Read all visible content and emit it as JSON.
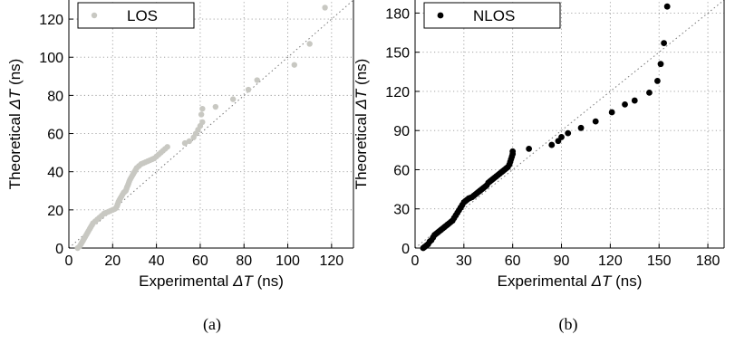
{
  "chart_data": [
    {
      "type": "scatter",
      "caption": "(a)",
      "xlabel": {
        "pre": "Experimental ",
        "sym": "ΔT",
        "post": " (ns)"
      },
      "ylabel": {
        "pre": "Theoretical ",
        "sym": "ΔT",
        "post": " (ns)"
      },
      "xlim": [
        0,
        130
      ],
      "ylim": [
        0,
        130
      ],
      "xticks": [
        0,
        20,
        40,
        60,
        80,
        100,
        120
      ],
      "yticks": [
        0,
        20,
        40,
        60,
        80,
        100,
        120
      ],
      "grid": true,
      "reference_line": "y = x (dotted)",
      "legend_position": "top-left",
      "series": [
        {
          "name": "LOS",
          "color": "#c8c8c2",
          "points": [
            [
              4,
              0
            ],
            [
              5,
              1
            ],
            [
              5.5,
              2
            ],
            [
              6,
              3
            ],
            [
              6.5,
              4
            ],
            [
              7,
              5
            ],
            [
              7.5,
              6
            ],
            [
              8,
              7
            ],
            [
              8.5,
              8
            ],
            [
              9,
              9
            ],
            [
              9.5,
              10
            ],
            [
              10,
              11
            ],
            [
              10.5,
              12
            ],
            [
              11,
              13
            ],
            [
              12,
              14
            ],
            [
              13,
              15
            ],
            [
              14,
              16
            ],
            [
              15,
              17
            ],
            [
              16,
              18
            ],
            [
              17,
              18.5
            ],
            [
              18,
              19
            ],
            [
              19,
              19.5
            ],
            [
              20,
              20
            ],
            [
              21,
              20.5
            ],
            [
              21.5,
              21
            ],
            [
              22,
              22
            ],
            [
              22.3,
              23
            ],
            [
              22.6,
              24
            ],
            [
              23,
              25
            ],
            [
              23.5,
              26
            ],
            [
              24,
              27
            ],
            [
              24.5,
              28
            ],
            [
              25,
              29
            ],
            [
              25.5,
              29.5
            ],
            [
              26,
              30
            ],
            [
              26.3,
              31
            ],
            [
              26.6,
              32
            ],
            [
              27,
              33
            ],
            [
              27.3,
              34
            ],
            [
              27.6,
              35
            ],
            [
              28,
              36
            ],
            [
              28.5,
              37
            ],
            [
              29,
              38
            ],
            [
              29.5,
              39
            ],
            [
              30,
              40
            ],
            [
              30.5,
              41
            ],
            [
              31,
              42
            ],
            [
              32,
              43
            ],
            [
              33,
              44
            ],
            [
              34,
              44.5
            ],
            [
              35,
              45
            ],
            [
              36,
              45.5
            ],
            [
              37,
              46
            ],
            [
              38,
              46.5
            ],
            [
              39,
              47
            ],
            [
              40,
              48
            ],
            [
              41,
              49
            ],
            [
              42,
              50
            ],
            [
              43,
              51
            ],
            [
              44,
              52
            ],
            [
              45,
              53
            ],
            [
              53,
              55
            ],
            [
              55,
              56
            ],
            [
              57,
              58
            ],
            [
              58,
              60
            ],
            [
              59,
              62
            ],
            [
              60,
              64
            ],
            [
              61,
              66
            ],
            [
              60.5,
              70
            ],
            [
              61,
              73
            ],
            [
              67,
              74
            ],
            [
              75,
              78
            ],
            [
              82,
              83
            ],
            [
              86,
              88
            ],
            [
              103,
              96
            ],
            [
              110,
              107
            ],
            [
              117,
              126
            ]
          ]
        }
      ]
    },
    {
      "type": "scatter",
      "caption": "(b)",
      "xlabel": {
        "pre": "Experimental ",
        "sym": "ΔT",
        "post": " (ns)"
      },
      "ylabel": {
        "pre": "Theoretical ",
        "sym": "ΔT",
        "post": " (ns)"
      },
      "xlim": [
        0,
        190
      ],
      "ylim": [
        0,
        190
      ],
      "xticks": [
        0,
        30,
        60,
        90,
        120,
        150,
        180
      ],
      "yticks": [
        0,
        30,
        60,
        90,
        120,
        150,
        180
      ],
      "grid": true,
      "reference_line": "y = x (dotted)",
      "legend_position": "top-left",
      "series": [
        {
          "name": "NLOS",
          "color": "#000000",
          "points": [
            [
              5,
              0
            ],
            [
              6,
              1
            ],
            [
              7,
              2
            ],
            [
              8,
              3
            ],
            [
              9,
              5
            ],
            [
              10,
              6
            ],
            [
              11,
              8
            ],
            [
              12,
              10
            ],
            [
              13,
              11
            ],
            [
              14,
              12
            ],
            [
              15,
              13
            ],
            [
              16,
              14
            ],
            [
              17,
              15
            ],
            [
              18,
              16
            ],
            [
              19,
              17
            ],
            [
              20,
              18
            ],
            [
              21,
              19
            ],
            [
              22,
              20
            ],
            [
              23,
              21
            ],
            [
              24,
              23
            ],
            [
              25,
              25
            ],
            [
              26,
              27
            ],
            [
              27,
              29
            ],
            [
              28,
              31
            ],
            [
              29,
              33
            ],
            [
              30,
              35
            ],
            [
              31,
              36
            ],
            [
              32,
              37
            ],
            [
              33,
              38
            ],
            [
              34,
              38.5
            ],
            [
              35,
              39
            ],
            [
              36,
              40
            ],
            [
              37,
              41
            ],
            [
              38,
              42
            ],
            [
              39,
              43
            ],
            [
              40,
              44
            ],
            [
              41,
              45
            ],
            [
              42,
              46
            ],
            [
              43,
              47
            ],
            [
              44,
              48
            ],
            [
              45,
              50
            ],
            [
              46,
              51
            ],
            [
              47,
              52
            ],
            [
              48,
              53
            ],
            [
              49,
              54
            ],
            [
              50,
              55
            ],
            [
              51,
              56
            ],
            [
              52,
              57
            ],
            [
              53,
              58
            ],
            [
              54,
              59
            ],
            [
              55,
              60
            ],
            [
              56,
              61
            ],
            [
              57,
              62
            ],
            [
              58,
              64
            ],
            [
              58.5,
              66
            ],
            [
              59,
              68
            ],
            [
              59.5,
              70
            ],
            [
              60,
              72
            ],
            [
              60,
              74
            ],
            [
              70,
              76
            ],
            [
              84,
              79
            ],
            [
              88,
              82
            ],
            [
              90,
              85
            ],
            [
              94,
              88
            ],
            [
              102,
              92
            ],
            [
              111,
              97
            ],
            [
              121,
              104
            ],
            [
              129,
              110
            ],
            [
              135,
              113
            ],
            [
              144,
              119
            ],
            [
              149,
              128
            ],
            [
              151,
              141
            ],
            [
              153,
              157
            ],
            [
              155,
              185
            ]
          ]
        }
      ]
    }
  ]
}
